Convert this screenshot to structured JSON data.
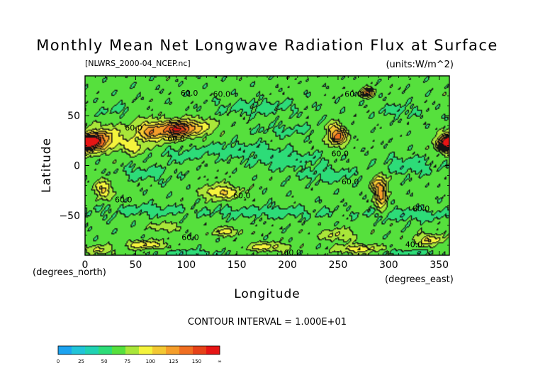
{
  "chart_data": {
    "type": "heatmap",
    "title": "Monthly Mean Net Longwave Radiation Flux at Surface",
    "file_label": "[NLWRS_2000-04_NCEP.nc]",
    "units_label": "(units:W/m^2)",
    "xlabel": "Longitude",
    "ylabel": "Latitude",
    "x_unit_label": "(degrees_east)",
    "y_unit_label": "(degrees_north)",
    "xlim": [
      0,
      360
    ],
    "ylim": [
      -90,
      90
    ],
    "x_ticks": [
      0,
      50,
      100,
      150,
      200,
      250,
      300,
      350
    ],
    "y_ticks": [
      50,
      0,
      -50
    ],
    "y_tick_labels": [
      "50",
      "0",
      "−50"
    ],
    "contour_interval_label": "CONTOUR INTERVAL = 1.000E+01",
    "contour_labels": [
      {
        "text": "60.0",
        "lon": 103,
        "lat": 73
      },
      {
        "text": "60.0",
        "lon": 135,
        "lat": 72
      },
      {
        "text": "60.0",
        "lon": 265,
        "lat": 72
      },
      {
        "text": "60.0",
        "lon": 48,
        "lat": 38
      },
      {
        "text": "60.0",
        "lon": 90,
        "lat": 27
      },
      {
        "text": "60.0",
        "lon": 252,
        "lat": 12
      },
      {
        "text": "60.0",
        "lon": 262,
        "lat": -16
      },
      {
        "text": "60.0",
        "lon": 38,
        "lat": -34
      },
      {
        "text": "60.0",
        "lon": 155,
        "lat": -30
      },
      {
        "text": "60.0",
        "lon": 332,
        "lat": -43
      },
      {
        "text": "60.0",
        "lon": 104,
        "lat": -72
      },
      {
        "text": "60.0",
        "lon": 205,
        "lat": -87
      },
      {
        "text": "40.0",
        "lon": 325,
        "lat": -79
      }
    ],
    "colorbar": {
      "tick_labels": [
        "0",
        "25",
        "50",
        "75",
        "100",
        "125",
        "150",
        "∞"
      ],
      "colors": [
        "#1ca3f0",
        "#21c4d8",
        "#20d2b3",
        "#2ddc78",
        "#56e03d",
        "#a9e639",
        "#f4f33c",
        "#f3c832",
        "#f59e2a",
        "#f06e21",
        "#e64218",
        "#e61515"
      ]
    },
    "levels": [
      0,
      12.5,
      25,
      37.5,
      50,
      62.5,
      75,
      87.5,
      100,
      112.5,
      125,
      137.5,
      150
    ],
    "base_value": 55,
    "features": [
      {
        "lon": 6,
        "lat": 23,
        "sx": 9,
        "sy": 6,
        "v": 85
      },
      {
        "lon": 357,
        "lat": 22,
        "sx": 6,
        "sy": 5,
        "v": 55
      },
      {
        "lon": 22,
        "lat": 28,
        "sx": 12,
        "sy": 8,
        "v": 35
      },
      {
        "lon": 68,
        "lat": 34,
        "sx": 13,
        "sy": 7,
        "v": 55
      },
      {
        "lon": 92,
        "lat": 36,
        "sx": 8,
        "sy": 5,
        "v": 70
      },
      {
        "lon": 110,
        "lat": 38,
        "sx": 12,
        "sy": 6,
        "v": 35
      },
      {
        "lon": 48,
        "lat": 18,
        "sx": 8,
        "sy": 5,
        "v": 25
      },
      {
        "lon": 250,
        "lat": 29,
        "sx": 6,
        "sy": 6,
        "v": 65
      },
      {
        "lon": 244,
        "lat": 38,
        "sx": 4,
        "sy": 4,
        "v": 25
      },
      {
        "lon": 18,
        "lat": -24,
        "sx": 6,
        "sy": 6,
        "v": 35
      },
      {
        "lon": 135,
        "lat": -27,
        "sx": 12,
        "sy": 5,
        "v": 35
      },
      {
        "lon": 293,
        "lat": -27,
        "sx": 4,
        "sy": 11,
        "v": 55
      },
      {
        "lon": 287,
        "lat": -18,
        "sx": 3,
        "sy": 5,
        "v": 25
      },
      {
        "lon": 279,
        "lat": 73,
        "sx": 4,
        "sy": 3,
        "v": 60
      },
      {
        "lon": 80,
        "lat": -62,
        "sx": 9,
        "sy": 3,
        "v": 20
      },
      {
        "lon": 140,
        "lat": -67,
        "sx": 10,
        "sy": 3,
        "v": 25
      },
      {
        "lon": 250,
        "lat": -70,
        "sx": 12,
        "sy": 4,
        "v": 22
      },
      {
        "lon": 340,
        "lat": -75,
        "sx": 10,
        "sy": 4,
        "v": 30
      },
      {
        "lon": 60,
        "lat": -80,
        "sx": 14,
        "sy": 3,
        "v": 30
      },
      {
        "lon": 180,
        "lat": -82,
        "sx": 14,
        "sy": 3,
        "v": 28
      },
      {
        "lon": 270,
        "lat": -84,
        "sx": 15,
        "sy": 3,
        "v": 30
      },
      {
        "lon": 15,
        "lat": -85,
        "sx": 8,
        "sy": 3,
        "v": 25
      },
      {
        "lon": 150,
        "lat": 15,
        "sx": 30,
        "sy": 5,
        "v": -12
      },
      {
        "lon": 200,
        "lat": 5,
        "sx": 25,
        "sy": 5,
        "v": -13
      },
      {
        "lon": 320,
        "lat": 0,
        "sx": 18,
        "sy": 6,
        "v": -14
      },
      {
        "lon": 240,
        "lat": -10,
        "sx": 20,
        "sy": 5,
        "v": -11
      },
      {
        "lon": 60,
        "lat": -8,
        "sx": 18,
        "sy": 5,
        "v": -11
      },
      {
        "lon": 95,
        "lat": 10,
        "sx": 12,
        "sy": 4,
        "v": -10
      },
      {
        "lon": 180,
        "lat": -47,
        "sx": 40,
        "sy": 4,
        "v": -12
      },
      {
        "lon": 60,
        "lat": -45,
        "sx": 30,
        "sy": 4,
        "v": -10
      },
      {
        "lon": 320,
        "lat": -50,
        "sx": 30,
        "sy": 4,
        "v": -12
      },
      {
        "lon": 170,
        "lat": 58,
        "sx": 30,
        "sy": 5,
        "v": -10
      },
      {
        "lon": 310,
        "lat": 55,
        "sx": 15,
        "sy": 4,
        "v": -10
      },
      {
        "lon": 30,
        "lat": 55,
        "sx": 10,
        "sy": 4,
        "v": -8
      },
      {
        "lon": 200,
        "lat": 35,
        "sx": 25,
        "sy": 4,
        "v": -8
      },
      {
        "lon": 320,
        "lat": -88,
        "sx": 18,
        "sy": 2,
        "v": -15
      },
      {
        "lon": 100,
        "lat": -88,
        "sx": 20,
        "sy": 2,
        "v": -14
      }
    ]
  }
}
